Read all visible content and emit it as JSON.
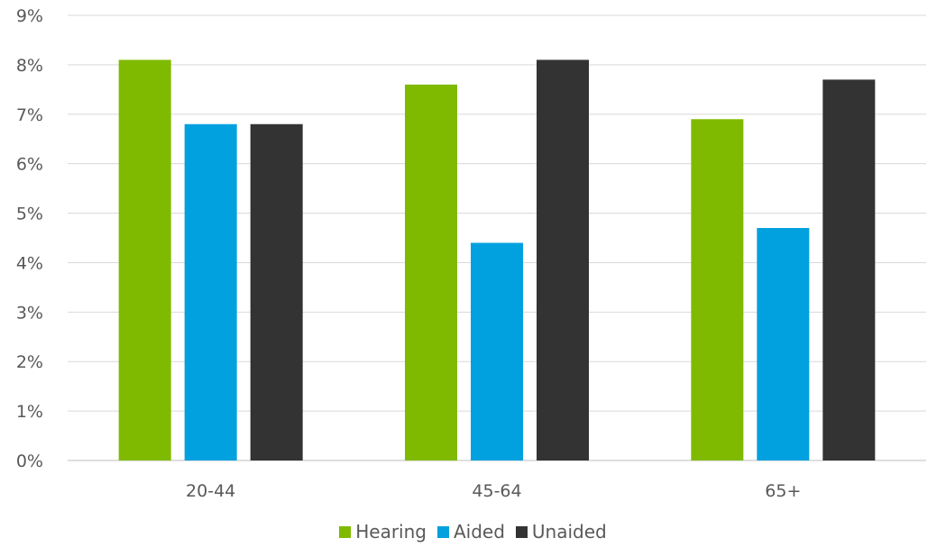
{
  "chart_data": {
    "type": "bar",
    "categories": [
      "20-44",
      "45-64",
      "65+"
    ],
    "series": [
      {
        "name": "Hearing",
        "values": [
          8.1,
          7.6,
          6.9
        ],
        "color": "#7fba00"
      },
      {
        "name": "Aided",
        "values": [
          6.8,
          4.4,
          4.7
        ],
        "color": "#00a1de"
      },
      {
        "name": "Unaided",
        "values": [
          6.8,
          8.1,
          7.7
        ],
        "color": "#333333"
      }
    ],
    "yticks": [
      "0%",
      "1%",
      "2%",
      "3%",
      "4%",
      "5%",
      "6%",
      "7%",
      "8%",
      "9%"
    ],
    "ylim": [
      0,
      9
    ],
    "grid": true,
    "legend_position": "bottom"
  }
}
